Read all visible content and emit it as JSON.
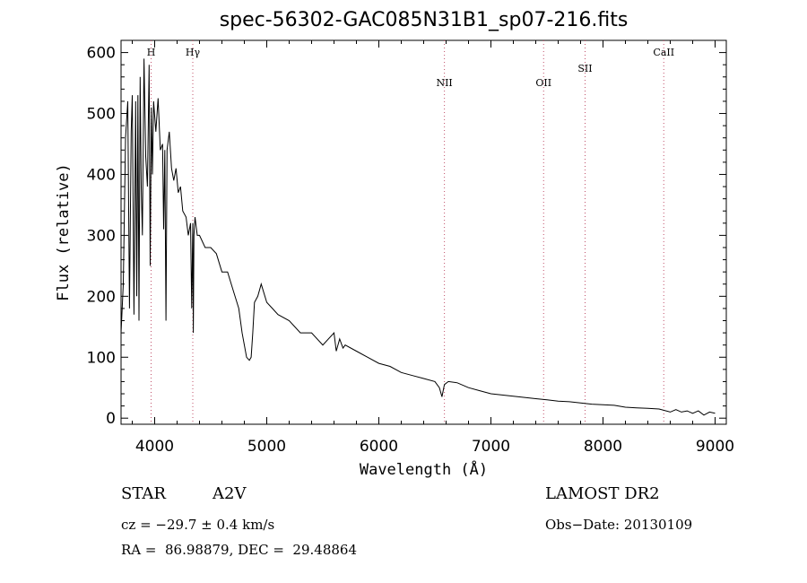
{
  "chart_data": {
    "type": "line",
    "title": "spec-56302-GAC085N31B1_sp07-216.fits",
    "xlabel": "Wavelength (Å)",
    "ylabel": "Flux (relative)",
    "xlim": [
      3700,
      9100
    ],
    "ylim": [
      -10,
      620
    ],
    "xticks": [
      4000,
      5000,
      6000,
      7000,
      8000,
      9000
    ],
    "yticks": [
      0,
      100,
      200,
      300,
      400,
      500,
      600
    ],
    "grid": false,
    "series": [
      {
        "values_x": [
          3700,
          3720,
          3740,
          3760,
          3775,
          3790,
          3800,
          3815,
          3830,
          3840,
          3850,
          3860,
          3870,
          3880,
          3890,
          3905,
          3920,
          3935,
          3950,
          3960,
          3970,
          3980,
          3990,
          4010,
          4030,
          4050,
          4070,
          4080,
          4090,
          4101,
          4110,
          4130,
          4150,
          4170,
          4190,
          4210,
          4230,
          4250,
          4280,
          4300,
          4320,
          4330,
          4340,
          4345,
          4350,
          4360,
          4380,
          4400,
          4450,
          4500,
          4550,
          4600,
          4650,
          4700,
          4750,
          4780,
          4820,
          4845,
          4861,
          4875,
          4890,
          4920,
          4950,
          5000,
          5050,
          5100,
          5200,
          5300,
          5400,
          5500,
          5600,
          5620,
          5650,
          5680,
          5700,
          5800,
          5900,
          6000,
          6100,
          6200,
          6300,
          6400,
          6500,
          6540,
          6563,
          6585,
          6620,
          6700,
          6800,
          6900,
          7000,
          7100,
          7200,
          7300,
          7400,
          7500,
          7600,
          7700,
          7800,
          7900,
          8000,
          8100,
          8200,
          8300,
          8400,
          8500,
          8600,
          8650,
          8700,
          8750,
          8800,
          8850,
          8900,
          8950,
          9000
        ],
        "values_y": [
          140,
          220,
          460,
          520,
          180,
          470,
          530,
          170,
          520,
          200,
          530,
          160,
          560,
          380,
          300,
          590,
          430,
          380,
          580,
          250,
          510,
          400,
          520,
          470,
          525,
          440,
          450,
          310,
          440,
          160,
          440,
          470,
          410,
          390,
          410,
          370,
          380,
          340,
          330,
          300,
          320,
          180,
          320,
          140,
          300,
          330,
          300,
          300,
          280,
          280,
          270,
          240,
          240,
          210,
          180,
          140,
          100,
          95,
          100,
          140,
          190,
          200,
          220,
          190,
          180,
          170,
          160,
          140,
          140,
          120,
          140,
          110,
          130,
          115,
          120,
          110,
          100,
          90,
          85,
          75,
          70,
          65,
          60,
          50,
          35,
          55,
          60,
          58,
          50,
          45,
          40,
          38,
          36,
          34,
          32,
          30,
          28,
          27,
          25,
          23,
          22,
          21,
          18,
          17,
          16,
          15,
          10,
          14,
          10,
          12,
          8,
          12,
          5,
          10,
          8
        ]
      }
    ],
    "annotations": [
      "H",
      "Hγ",
      "NII",
      "OII",
      "SII",
      "CaII"
    ],
    "annotation_x": [
      3968,
      4340,
      6585,
      7470,
      7840,
      8542
    ]
  },
  "footer": {
    "object_class": "STAR",
    "subclass": "A2V",
    "redshift": "cz = −29.7 ± 0.4 km/s",
    "coords": "RA =  86.98879, DEC =  29.48864",
    "survey": "LAMOST DR2",
    "obs_date": "Obs−Date: 20130109"
  }
}
